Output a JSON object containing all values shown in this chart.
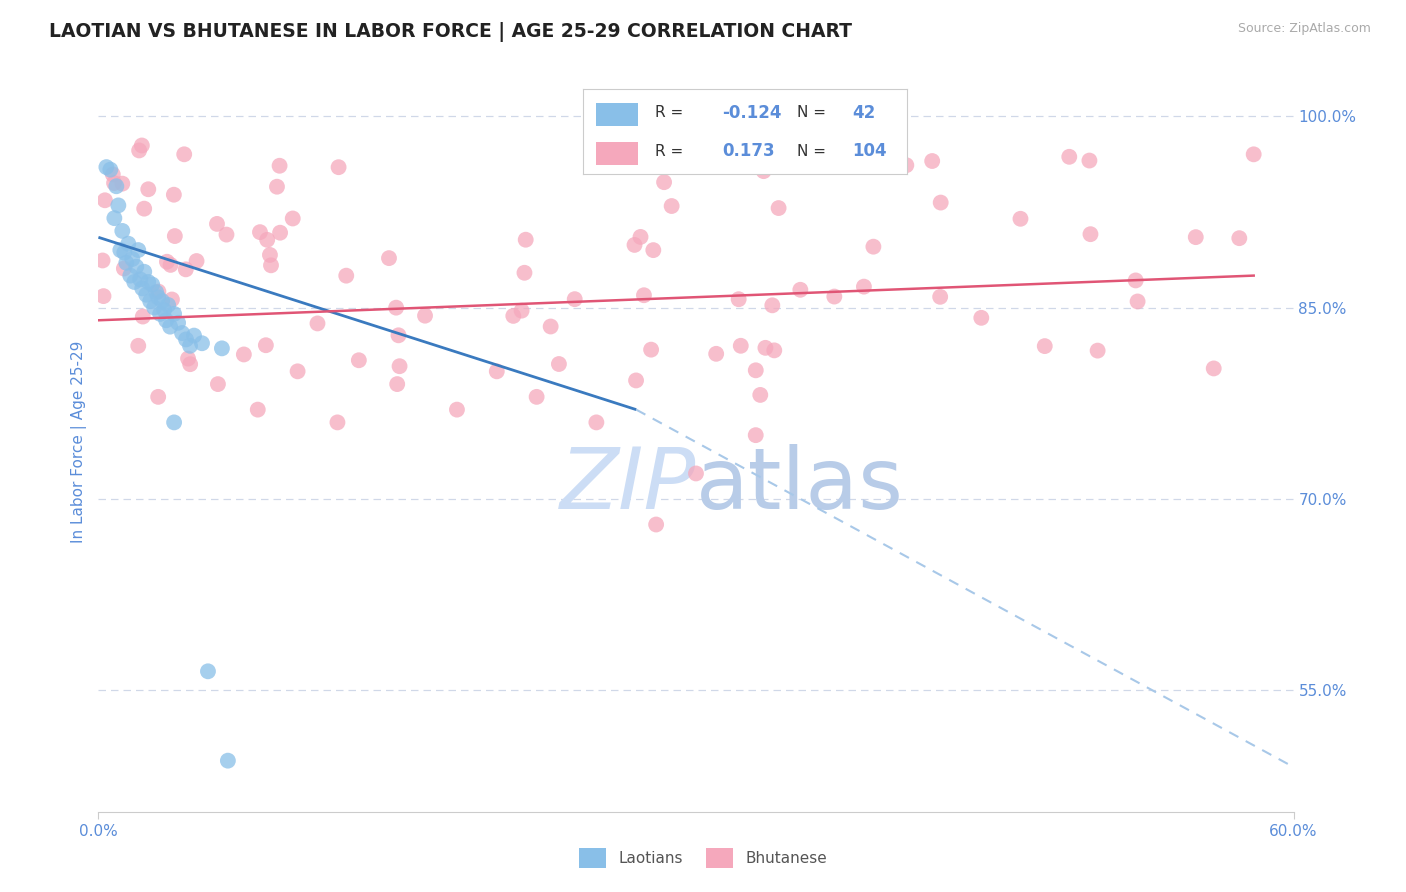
{
  "title": "LAOTIAN VS BHUTANESE IN LABOR FORCE | AGE 25-29 CORRELATION CHART",
  "source_text": "Source: ZipAtlas.com",
  "ylabel": "In Labor Force | Age 25-29",
  "x_min": 0.0,
  "x_max": 0.6,
  "y_min": 0.455,
  "y_max": 1.035,
  "y_ticks": [
    0.55,
    0.7,
    0.85,
    1.0
  ],
  "y_tick_labels": [
    "55.0%",
    "70.0%",
    "85.0%",
    "100.0%"
  ],
  "legend_R1": "-0.124",
  "legend_N1": "42",
  "legend_R2": "0.173",
  "legend_N2": "104",
  "laotian_color": "#89bfe8",
  "bhutanese_color": "#f5a8bc",
  "trend_laotian_solid_color": "#3a7abf",
  "trend_bhutanese_color": "#e05575",
  "dashed_line_color": "#a8c8e8",
  "watermark_color": "#ccddf5",
  "title_color": "#222222",
  "tick_label_color": "#5b8dd9",
  "background_color": "#ffffff",
  "grid_color": "#d0d8e8",
  "legend_text_dark": "#333333",
  "legend_value_color": "#5b8dd9",
  "source_color": "#aaaaaa",
  "ylabel_color": "#5b8dd9"
}
